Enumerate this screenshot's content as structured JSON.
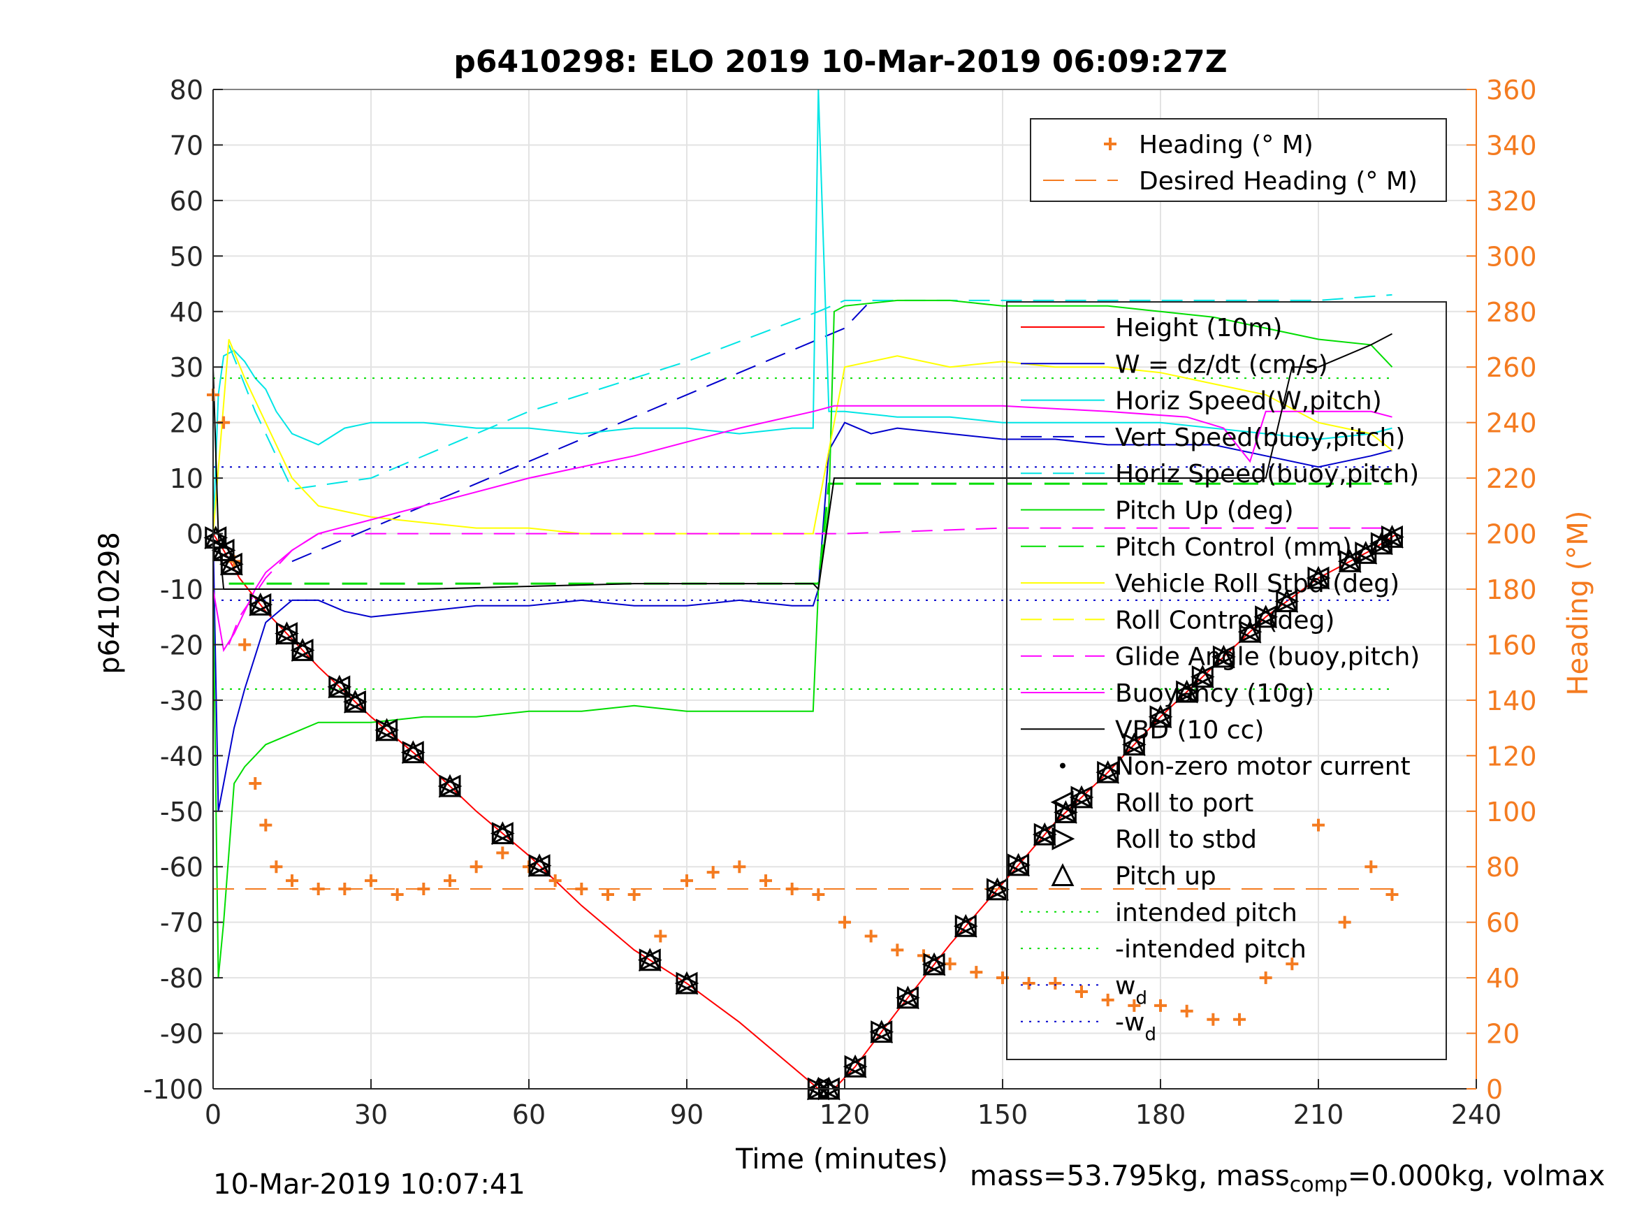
{
  "chart_data": {
    "type": "line",
    "title": "p6410298: ELO 2019 10-Mar-2019 06:09:27Z",
    "xlabel": "Time (minutes)",
    "ylabel": "p6410298",
    "ylabel_right": "Heading (°M)",
    "xlim": [
      0,
      240
    ],
    "ylim": [
      -100,
      80
    ],
    "ylim_right": [
      0,
      360
    ],
    "xticks": [
      "0",
      "30",
      "60",
      "90",
      "120",
      "150",
      "180",
      "210",
      "240"
    ],
    "yticks": [
      "-100",
      "-90",
      "-80",
      "-70",
      "-60",
      "-50",
      "-40",
      "-30",
      "-20",
      "-10",
      "0",
      "10",
      "20",
      "30",
      "40",
      "50",
      "60",
      "70",
      "80"
    ],
    "yticks_right": [
      "0",
      "20",
      "40",
      "60",
      "80",
      "100",
      "120",
      "140",
      "160",
      "180",
      "200",
      "220",
      "240",
      "260",
      "280",
      "300",
      "320",
      "340",
      "360"
    ],
    "grid": true,
    "colors": {
      "heading": "#F47B20",
      "height": "#FF0000",
      "w": "#0000CC",
      "horiz_speed": "#00E5E5",
      "pitch": "#00DD00",
      "roll": "#FFFF00",
      "glide": "#FF00FF",
      "vbd": "#000000",
      "right_axis": "#F47B20",
      "wd": "#0000CC"
    },
    "legend_right_axis": {
      "position": "top-right",
      "entries": [
        "Heading (° M)",
        "Desired Heading (° M)"
      ]
    },
    "legend_left_axis": {
      "position": "right",
      "entries": [
        "Height (10m)",
        "W = dz/dt (cm/s)",
        "Horiz Speed(W,pitch)",
        "Vert Speed(buoy,pitch)",
        "Horiz Speed(buoy,pitch)",
        "Pitch Up (deg)",
        "Pitch Control (mm)",
        "Vehicle Roll Stbd (deg)",
        "Roll Control (deg)",
        "Glide Angle (buoy,pitch)",
        "Buoyancy (10g)",
        "VBD (10 cc)",
        "Non-zero motor current",
        "Roll to port",
        "Roll to stbd",
        "Pitch up",
        "intended pitch",
        "-intended pitch",
        "w",
        "-w"
      ],
      "subscripts": {
        "18": "d",
        "19": "d"
      }
    },
    "series": [
      {
        "name": "Height (10m)",
        "axis": "left",
        "x": [
          0,
          2,
          5,
          10,
          20,
          30,
          40,
          50,
          60,
          70,
          80,
          90,
          100,
          110,
          115,
          118,
          122,
          130,
          140,
          150,
          160,
          170,
          180,
          190,
          200,
          210,
          220,
          225
        ],
        "y": [
          0,
          -3,
          -8,
          -14,
          -24,
          -33,
          -41,
          -50,
          -58,
          -67,
          -75,
          -81,
          -88,
          -96,
          -100,
          -100,
          -96,
          -86,
          -74,
          -63,
          -52,
          -43,
          -33,
          -24,
          -15,
          -8,
          -3,
          0
        ]
      },
      {
        "name": "W = dz/dt (cm/s)",
        "axis": "left",
        "x": [
          0,
          1,
          2,
          4,
          6,
          8,
          10,
          15,
          20,
          25,
          30,
          40,
          50,
          60,
          70,
          80,
          90,
          100,
          110,
          114,
          115,
          117,
          120,
          125,
          130,
          140,
          150,
          160,
          170,
          180,
          190,
          200,
          210,
          220,
          224
        ],
        "y": [
          0,
          -50,
          -45,
          -35,
          -28,
          -22,
          -16,
          -12,
          -12,
          -14,
          -15,
          -14,
          -13,
          -13,
          -12,
          -13,
          -13,
          -12,
          -13,
          -13,
          -10,
          15,
          20,
          18,
          19,
          18,
          17,
          17,
          16,
          16,
          16,
          14,
          12,
          14,
          15
        ]
      },
      {
        "name": "W (dashed, secondary)",
        "axis": "left",
        "x": [
          15,
          115,
          120,
          125
        ],
        "y": [
          -5,
          35,
          37,
          42
        ]
      },
      {
        "name": "Horiz Speed(W,pitch)",
        "axis": "left",
        "x": [
          0,
          1,
          2,
          4,
          6,
          8,
          10,
          12,
          15,
          20,
          25,
          30,
          40,
          50,
          60,
          70,
          80,
          90,
          100,
          110,
          114,
          115,
          117,
          120,
          130,
          140,
          150,
          160,
          170,
          180,
          190,
          200,
          210,
          220,
          224
        ],
        "y": [
          0,
          25,
          32,
          33,
          31,
          28,
          26,
          22,
          18,
          16,
          19,
          20,
          20,
          19,
          19,
          18,
          19,
          19,
          18,
          19,
          19,
          80,
          22,
          22,
          21,
          21,
          20,
          20,
          20,
          20,
          19,
          18,
          17,
          18,
          19
        ]
      },
      {
        "name": "Horiz Speed(buoy,pitch)",
        "axis": "left",
        "x": [
          3,
          8,
          15,
          30,
          60,
          90,
          115,
          120,
          125,
          150,
          180,
          210,
          224
        ],
        "y": [
          34,
          22,
          8,
          10,
          22,
          31,
          40,
          42,
          42,
          42,
          42,
          42,
          43
        ]
      },
      {
        "name": "Pitch Up (deg)",
        "axis": "left",
        "x": [
          0,
          1,
          2,
          4,
          6,
          8,
          10,
          15,
          20,
          30,
          40,
          50,
          60,
          70,
          80,
          90,
          100,
          110,
          114,
          115,
          117,
          118,
          120,
          130,
          140,
          150,
          160,
          170,
          180,
          190,
          200,
          210,
          220,
          224
        ],
        "y": [
          -10,
          -80,
          -70,
          -45,
          -42,
          -40,
          -38,
          -36,
          -34,
          -34,
          -33,
          -33,
          -32,
          -32,
          -31,
          -32,
          -32,
          -32,
          -32,
          -10,
          5,
          40,
          41,
          42,
          42,
          41,
          41,
          41,
          40,
          39,
          37,
          35,
          34,
          30
        ]
      },
      {
        "name": "Pitch Control (mm)",
        "axis": "left",
        "x": [
          3,
          115,
          117,
          224
        ],
        "y": [
          -9,
          -9,
          9,
          9
        ]
      },
      {
        "name": "Intended pitch",
        "axis": "left",
        "x": [
          0,
          224
        ],
        "y": [
          28,
          28
        ]
      },
      {
        "name": "-intended pitch",
        "axis": "left",
        "x": [
          0,
          224
        ],
        "y": [
          -28,
          -28
        ]
      },
      {
        "name": "w_d",
        "axis": "left",
        "x": [
          0,
          224
        ],
        "y": [
          12,
          12
        ]
      },
      {
        "name": "-w_d",
        "axis": "left",
        "x": [
          0,
          224
        ],
        "y": [
          -12,
          -12
        ]
      },
      {
        "name": "Vehicle Roll Stbd (deg)",
        "axis": "left",
        "x": [
          0,
          3,
          6,
          10,
          15,
          20,
          30,
          40,
          50,
          60,
          70,
          80,
          90,
          100,
          110,
          114,
          116,
          120,
          130,
          140,
          150,
          160,
          170,
          180,
          190,
          200,
          210,
          220,
          224
        ],
        "y": [
          0,
          35,
          28,
          20,
          10,
          5,
          3,
          2,
          1,
          1,
          0,
          0,
          0,
          0,
          0,
          0,
          10,
          30,
          32,
          30,
          31,
          30,
          30,
          29,
          27,
          25,
          20,
          18,
          15
        ]
      },
      {
        "name": "Glide Angle (buoy,pitch)",
        "axis": "left",
        "x": [
          3,
          5,
          10,
          15,
          20,
          30,
          60,
          90,
          115,
          120,
          150,
          180,
          210,
          224
        ],
        "y": [
          -20,
          -15,
          -8,
          -3,
          0,
          0,
          0,
          0,
          0,
          0,
          1,
          1,
          1,
          1
        ]
      },
      {
        "name": "Buoyancy (10g)",
        "axis": "left",
        "x": [
          0,
          2,
          4,
          6,
          8,
          10,
          15,
          20,
          40,
          60,
          80,
          100,
          114,
          118,
          130,
          150,
          170,
          185,
          192,
          197,
          200,
          210,
          220,
          224
        ],
        "y": [
          -10,
          -21,
          -18,
          -14,
          -10,
          -7,
          -3,
          0,
          5,
          10,
          14,
          19,
          22,
          23,
          23,
          23,
          22,
          21,
          19,
          13,
          22,
          22,
          22,
          21
        ]
      },
      {
        "name": "VBD (10 cc)",
        "axis": "left",
        "x": [
          0,
          1,
          2,
          40,
          80,
          114,
          115,
          118,
          130,
          150,
          175,
          190,
          200,
          205,
          210,
          215,
          220,
          224
        ],
        "y": [
          30,
          0,
          -10,
          -10,
          -9,
          -9,
          -10,
          10,
          10,
          10,
          10,
          10,
          10,
          30,
          30,
          32,
          34,
          36
        ]
      },
      {
        "name": "Heading (° M)",
        "axis": "right",
        "x": [
          0,
          2,
          4,
          6,
          8,
          10,
          12,
          15,
          20,
          25,
          30,
          35,
          40,
          45,
          50,
          55,
          60,
          65,
          70,
          75,
          80,
          85,
          90,
          95,
          100,
          105,
          110,
          115,
          120,
          125,
          130,
          135,
          140,
          145,
          150,
          155,
          160,
          165,
          170,
          175,
          180,
          185,
          190,
          195,
          200,
          205,
          210,
          215,
          220,
          224
        ],
        "y": [
          250,
          240,
          190,
          160,
          110,
          95,
          80,
          75,
          72,
          72,
          75,
          70,
          72,
          75,
          80,
          85,
          80,
          75,
          72,
          70,
          70,
          55,
          75,
          78,
          80,
          75,
          72,
          70,
          60,
          55,
          50,
          48,
          45,
          42,
          40,
          38,
          38,
          35,
          32,
          30,
          30,
          28,
          25,
          25,
          40,
          45,
          95,
          60,
          80,
          70
        ]
      },
      {
        "name": "Desired Heading (° M)",
        "axis": "right",
        "x": [
          0,
          224
        ],
        "y": [
          72,
          72
        ]
      }
    ],
    "markers": {
      "roll_port_stbd_x": [
        0.5,
        2,
        3.5,
        9,
        14,
        17,
        24,
        27,
        33,
        38,
        45,
        55,
        62,
        83,
        90,
        115,
        117,
        122,
        127,
        132,
        137,
        143,
        149,
        153,
        158,
        162,
        165,
        170,
        175,
        180,
        185,
        188,
        192,
        197,
        200,
        204,
        210,
        216,
        219,
        222,
        224
      ]
    }
  },
  "footer": {
    "timestamp": "10-Mar-2019 10:07:41",
    "mass_main": "mass=53.795kg, mass",
    "mass_sub": "comp",
    "mass_tail": "=0.000kg, volmax"
  }
}
